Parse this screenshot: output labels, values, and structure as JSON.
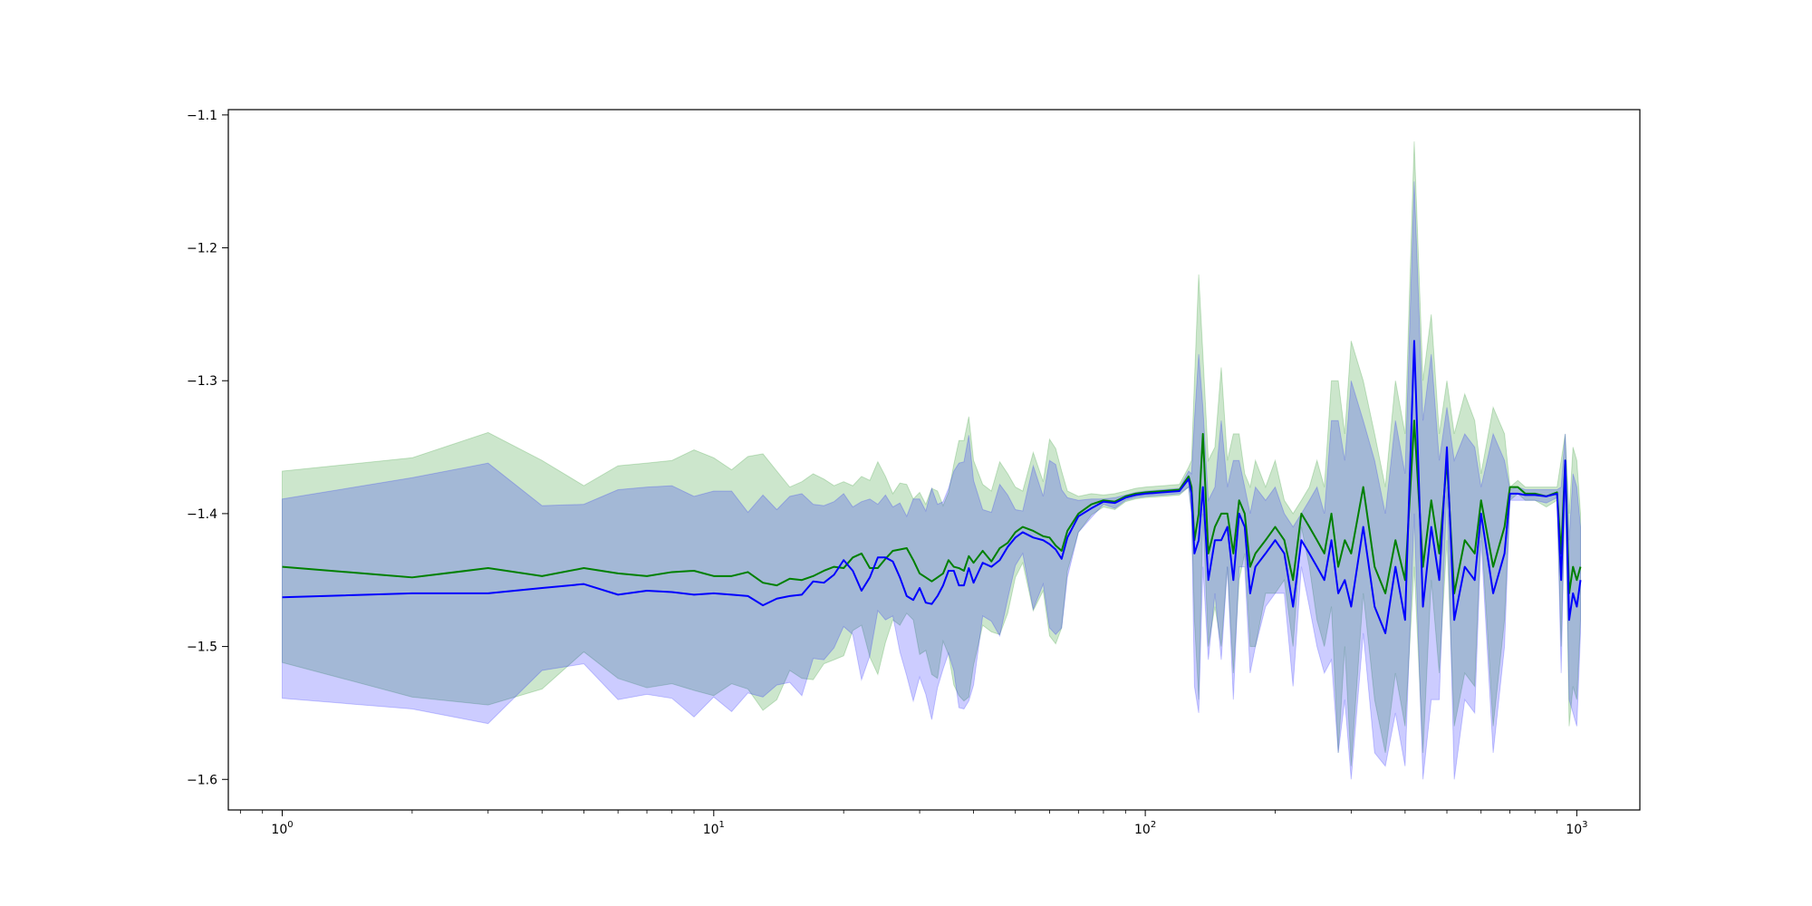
{
  "chart_data": {
    "type": "line",
    "title": "",
    "xlabel": "",
    "ylabel": "",
    "x_scale": "log",
    "xlim": [
      0.75,
      1400
    ],
    "ylim": [
      -1.623,
      -1.096
    ],
    "grid": false,
    "legend": "none",
    "x_ticks": [
      {
        "value": 1,
        "base": "10",
        "exp": "0"
      },
      {
        "value": 10,
        "base": "10",
        "exp": "1"
      },
      {
        "value": 100,
        "base": "10",
        "exp": "2"
      },
      {
        "value": 1000,
        "base": "10",
        "exp": "3"
      }
    ],
    "y_ticks": [
      {
        "value": -1.1,
        "label": "−1.1"
      },
      {
        "value": -1.2,
        "label": "−1.2"
      },
      {
        "value": -1.3,
        "label": "−1.3"
      },
      {
        "value": -1.4,
        "label": "−1.4"
      },
      {
        "value": -1.5,
        "label": "−1.5"
      },
      {
        "value": -1.6,
        "label": "−1.6"
      }
    ],
    "series": [
      {
        "color": "#008000",
        "band_color": "#008000",
        "band_opacity": 0.2,
        "x": [
          1,
          2,
          3,
          4,
          5,
          6,
          7,
          8,
          9,
          10,
          11,
          12,
          13,
          14,
          15,
          16,
          17,
          18,
          19,
          20,
          21,
          22,
          23,
          24,
          25,
          26,
          27,
          28,
          29,
          30,
          31,
          32,
          33,
          34,
          35,
          36,
          37,
          38,
          39,
          40,
          42,
          44,
          46,
          48,
          50,
          52,
          55,
          58,
          60,
          62,
          64,
          66,
          70,
          75,
          80,
          85,
          90,
          95,
          100,
          110,
          120,
          126,
          128,
          130,
          133,
          136,
          140,
          145,
          150,
          155,
          160,
          165,
          170,
          175,
          180,
          190,
          200,
          210,
          220,
          230,
          240,
          250,
          260,
          270,
          280,
          290,
          300,
          320,
          340,
          360,
          380,
          400,
          420,
          440,
          460,
          480,
          500,
          520,
          550,
          580,
          600,
          640,
          680,
          700,
          730,
          760,
          800,
          850,
          900,
          920,
          940,
          960,
          980,
          1000,
          1020
        ],
        "mean": [
          -1.44,
          -1.448,
          -1.441,
          -1.447,
          -1.441,
          -1.445,
          -1.447,
          -1.444,
          -1.443,
          -1.447,
          -1.447,
          -1.444,
          -1.452,
          -1.454,
          -1.449,
          -1.45,
          -1.447,
          -1.443,
          -1.44,
          -1.441,
          -1.433,
          -1.43,
          -1.441,
          -1.441,
          -1.434,
          -1.428,
          -1.427,
          -1.426,
          -1.435,
          -1.445,
          -1.448,
          -1.451,
          -1.448,
          -1.445,
          -1.435,
          -1.44,
          -1.441,
          -1.443,
          -1.432,
          -1.437,
          -1.428,
          -1.436,
          -1.426,
          -1.422,
          -1.414,
          -1.41,
          -1.413,
          -1.417,
          -1.418,
          -1.424,
          -1.428,
          -1.413,
          -1.4,
          -1.393,
          -1.39,
          -1.391,
          -1.387,
          -1.385,
          -1.384,
          -1.383,
          -1.382,
          -1.372,
          -1.38,
          -1.42,
          -1.4,
          -1.34,
          -1.43,
          -1.41,
          -1.4,
          -1.4,
          -1.43,
          -1.39,
          -1.4,
          -1.44,
          -1.43,
          -1.42,
          -1.41,
          -1.42,
          -1.45,
          -1.4,
          -1.41,
          -1.42,
          -1.43,
          -1.4,
          -1.44,
          -1.42,
          -1.43,
          -1.38,
          -1.44,
          -1.46,
          -1.42,
          -1.45,
          -1.33,
          -1.44,
          -1.39,
          -1.43,
          -1.36,
          -1.46,
          -1.42,
          -1.43,
          -1.39,
          -1.44,
          -1.41,
          -1.38,
          -1.38,
          -1.385,
          -1.385,
          -1.387,
          -1.384,
          -1.43,
          -1.36,
          -1.46,
          -1.44,
          -1.45,
          -1.44
        ],
        "upper": [
          -1.368,
          -1.358,
          -1.339,
          -1.36,
          -1.379,
          -1.364,
          -1.362,
          -1.36,
          -1.352,
          -1.358,
          -1.367,
          -1.357,
          -1.355,
          -1.368,
          -1.38,
          -1.376,
          -1.37,
          -1.374,
          -1.379,
          -1.376,
          -1.379,
          -1.372,
          -1.375,
          -1.361,
          -1.372,
          -1.385,
          -1.377,
          -1.378,
          -1.389,
          -1.384,
          -1.393,
          -1.381,
          -1.383,
          -1.394,
          -1.384,
          -1.363,
          -1.345,
          -1.345,
          -1.327,
          -1.36,
          -1.378,
          -1.383,
          -1.361,
          -1.37,
          -1.38,
          -1.383,
          -1.354,
          -1.376,
          -1.344,
          -1.351,
          -1.368,
          -1.383,
          -1.387,
          -1.385,
          -1.386,
          -1.385,
          -1.383,
          -1.381,
          -1.38,
          -1.379,
          -1.378,
          -1.365,
          -1.36,
          -1.3,
          -1.22,
          -1.28,
          -1.36,
          -1.35,
          -1.29,
          -1.36,
          -1.34,
          -1.34,
          -1.37,
          -1.38,
          -1.36,
          -1.38,
          -1.36,
          -1.39,
          -1.4,
          -1.39,
          -1.38,
          -1.36,
          -1.38,
          -1.3,
          -1.3,
          -1.34,
          -1.27,
          -1.3,
          -1.34,
          -1.38,
          -1.3,
          -1.34,
          -1.12,
          -1.3,
          -1.25,
          -1.34,
          -1.3,
          -1.34,
          -1.31,
          -1.33,
          -1.37,
          -1.32,
          -1.34,
          -1.38,
          -1.375,
          -1.38,
          -1.38,
          -1.38,
          -1.38,
          -1.36,
          -1.34,
          -1.4,
          -1.35,
          -1.36,
          -1.4
        ],
        "lower": [
          -1.512,
          -1.538,
          -1.544,
          -1.532,
          -1.504,
          -1.524,
          -1.531,
          -1.528,
          -1.533,
          -1.537,
          -1.528,
          -1.532,
          -1.548,
          -1.54,
          -1.518,
          -1.524,
          -1.525,
          -1.513,
          -1.51,
          -1.507,
          -1.488,
          -1.484,
          -1.508,
          -1.521,
          -1.497,
          -1.48,
          -1.484,
          -1.475,
          -1.48,
          -1.506,
          -1.503,
          -1.521,
          -1.524,
          -1.496,
          -1.506,
          -1.529,
          -1.537,
          -1.541,
          -1.538,
          -1.514,
          -1.484,
          -1.489,
          -1.491,
          -1.475,
          -1.448,
          -1.437,
          -1.473,
          -1.458,
          -1.492,
          -1.498,
          -1.486,
          -1.443,
          -1.414,
          -1.401,
          -1.395,
          -1.397,
          -1.391,
          -1.389,
          -1.388,
          -1.387,
          -1.386,
          -1.38,
          -1.4,
          -1.48,
          -1.54,
          -1.4,
          -1.5,
          -1.47,
          -1.5,
          -1.44,
          -1.52,
          -1.45,
          -1.43,
          -1.5,
          -1.5,
          -1.46,
          -1.46,
          -1.45,
          -1.5,
          -1.41,
          -1.44,
          -1.48,
          -1.5,
          -1.47,
          -1.58,
          -1.5,
          -1.59,
          -1.46,
          -1.54,
          -1.58,
          -1.52,
          -1.56,
          -1.44,
          -1.58,
          -1.45,
          -1.52,
          -1.42,
          -1.56,
          -1.52,
          -1.53,
          -1.41,
          -1.56,
          -1.48,
          -1.39,
          -1.385,
          -1.39,
          -1.39,
          -1.395,
          -1.39,
          -1.5,
          -1.38,
          -1.56,
          -1.53,
          -1.54,
          -1.48
        ]
      },
      {
        "color": "#0000ff",
        "band_color": "#0000ff",
        "band_opacity": 0.2,
        "x": [
          1,
          2,
          3,
          4,
          5,
          6,
          7,
          8,
          9,
          10,
          11,
          12,
          13,
          14,
          15,
          16,
          17,
          18,
          19,
          20,
          21,
          22,
          23,
          24,
          25,
          26,
          27,
          28,
          29,
          30,
          31,
          32,
          33,
          34,
          35,
          36,
          37,
          38,
          39,
          40,
          42,
          44,
          46,
          48,
          50,
          52,
          55,
          58,
          60,
          62,
          64,
          66,
          70,
          75,
          80,
          85,
          90,
          95,
          100,
          110,
          120,
          126,
          128,
          130,
          133,
          136,
          140,
          145,
          150,
          155,
          160,
          165,
          170,
          175,
          180,
          190,
          200,
          210,
          220,
          230,
          240,
          250,
          260,
          270,
          280,
          290,
          300,
          320,
          340,
          360,
          380,
          400,
          420,
          440,
          460,
          480,
          500,
          520,
          550,
          580,
          600,
          640,
          680,
          700,
          730,
          760,
          800,
          850,
          900,
          920,
          940,
          960,
          980,
          1000,
          1020
        ],
        "mean": [
          -1.463,
          -1.46,
          -1.46,
          -1.456,
          -1.453,
          -1.461,
          -1.458,
          -1.459,
          -1.461,
          -1.46,
          -1.461,
          -1.462,
          -1.469,
          -1.464,
          -1.462,
          -1.461,
          -1.451,
          -1.452,
          -1.446,
          -1.435,
          -1.443,
          -1.458,
          -1.448,
          -1.433,
          -1.433,
          -1.436,
          -1.448,
          -1.462,
          -1.465,
          -1.456,
          -1.467,
          -1.468,
          -1.462,
          -1.454,
          -1.443,
          -1.443,
          -1.454,
          -1.454,
          -1.441,
          -1.452,
          -1.437,
          -1.44,
          -1.435,
          -1.425,
          -1.418,
          -1.414,
          -1.418,
          -1.42,
          -1.423,
          -1.427,
          -1.434,
          -1.418,
          -1.402,
          -1.396,
          -1.391,
          -1.392,
          -1.388,
          -1.386,
          -1.385,
          -1.384,
          -1.383,
          -1.374,
          -1.385,
          -1.43,
          -1.42,
          -1.38,
          -1.45,
          -1.42,
          -1.42,
          -1.41,
          -1.45,
          -1.4,
          -1.41,
          -1.46,
          -1.44,
          -1.43,
          -1.42,
          -1.43,
          -1.47,
          -1.42,
          -1.43,
          -1.44,
          -1.45,
          -1.42,
          -1.46,
          -1.45,
          -1.47,
          -1.41,
          -1.47,
          -1.49,
          -1.44,
          -1.48,
          -1.27,
          -1.47,
          -1.41,
          -1.45,
          -1.35,
          -1.48,
          -1.44,
          -1.45,
          -1.4,
          -1.46,
          -1.43,
          -1.385,
          -1.385,
          -1.386,
          -1.386,
          -1.387,
          -1.385,
          -1.45,
          -1.36,
          -1.48,
          -1.46,
          -1.47,
          -1.45
        ],
        "upper": [
          -1.389,
          -1.373,
          -1.362,
          -1.394,
          -1.393,
          -1.382,
          -1.38,
          -1.379,
          -1.387,
          -1.383,
          -1.383,
          -1.399,
          -1.386,
          -1.397,
          -1.387,
          -1.385,
          -1.393,
          -1.394,
          -1.391,
          -1.385,
          -1.395,
          -1.391,
          -1.389,
          -1.393,
          -1.386,
          -1.395,
          -1.392,
          -1.402,
          -1.389,
          -1.389,
          -1.398,
          -1.381,
          -1.393,
          -1.391,
          -1.381,
          -1.368,
          -1.362,
          -1.361,
          -1.341,
          -1.375,
          -1.397,
          -1.399,
          -1.378,
          -1.386,
          -1.397,
          -1.398,
          -1.364,
          -1.387,
          -1.36,
          -1.363,
          -1.382,
          -1.388,
          -1.39,
          -1.389,
          -1.389,
          -1.388,
          -1.386,
          -1.384,
          -1.383,
          -1.382,
          -1.381,
          -1.368,
          -1.37,
          -1.33,
          -1.28,
          -1.32,
          -1.39,
          -1.38,
          -1.33,
          -1.38,
          -1.36,
          -1.36,
          -1.38,
          -1.4,
          -1.38,
          -1.39,
          -1.38,
          -1.4,
          -1.41,
          -1.4,
          -1.39,
          -1.38,
          -1.4,
          -1.33,
          -1.33,
          -1.36,
          -1.3,
          -1.33,
          -1.36,
          -1.4,
          -1.33,
          -1.37,
          -1.15,
          -1.33,
          -1.28,
          -1.36,
          -1.32,
          -1.36,
          -1.34,
          -1.35,
          -1.38,
          -1.34,
          -1.36,
          -1.382,
          -1.38,
          -1.382,
          -1.382,
          -1.382,
          -1.382,
          -1.38,
          -1.34,
          -1.42,
          -1.37,
          -1.38,
          -1.41
        ],
        "lower": [
          -1.539,
          -1.547,
          -1.558,
          -1.518,
          -1.513,
          -1.54,
          -1.536,
          -1.539,
          -1.553,
          -1.538,
          -1.549,
          -1.535,
          -1.538,
          -1.529,
          -1.527,
          -1.537,
          -1.509,
          -1.51,
          -1.501,
          -1.485,
          -1.491,
          -1.525,
          -1.507,
          -1.473,
          -1.48,
          -1.477,
          -1.504,
          -1.522,
          -1.541,
          -1.523,
          -1.536,
          -1.555,
          -1.531,
          -1.517,
          -1.505,
          -1.518,
          -1.546,
          -1.547,
          -1.541,
          -1.529,
          -1.477,
          -1.481,
          -1.492,
          -1.464,
          -1.439,
          -1.43,
          -1.472,
          -1.453,
          -1.486,
          -1.491,
          -1.486,
          -1.448,
          -1.414,
          -1.403,
          -1.393,
          -1.396,
          -1.39,
          -1.388,
          -1.387,
          -1.386,
          -1.385,
          -1.38,
          -1.4,
          -1.53,
          -1.55,
          -1.44,
          -1.51,
          -1.46,
          -1.51,
          -1.44,
          -1.54,
          -1.44,
          -1.44,
          -1.52,
          -1.5,
          -1.47,
          -1.46,
          -1.46,
          -1.53,
          -1.44,
          -1.47,
          -1.5,
          -1.52,
          -1.51,
          -1.58,
          -1.54,
          -1.6,
          -1.49,
          -1.58,
          -1.59,
          -1.55,
          -1.59,
          -1.4,
          -1.6,
          -1.54,
          -1.54,
          -1.38,
          -1.6,
          -1.54,
          -1.55,
          -1.42,
          -1.58,
          -1.5,
          -1.39,
          -1.39,
          -1.39,
          -1.39,
          -1.392,
          -1.388,
          -1.52,
          -1.38,
          -1.54,
          -1.55,
          -1.56,
          -1.49
        ]
      }
    ]
  }
}
